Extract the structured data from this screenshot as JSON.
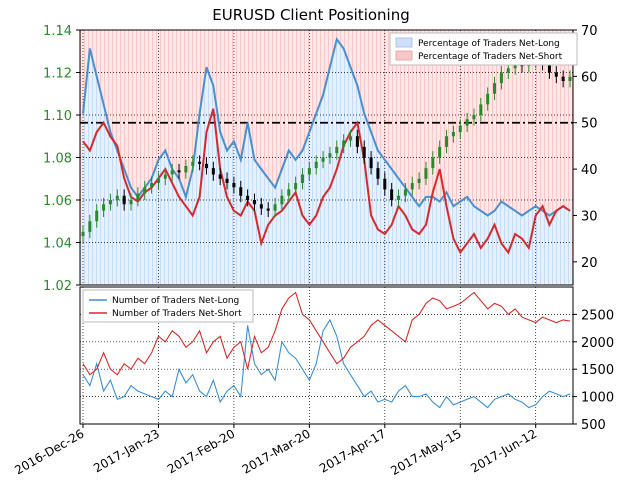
{
  "chart_data": [
    {
      "type": "candlestick",
      "title": "EURUSD Client Positioning",
      "y_left": {
        "ticks": [
          "1.02",
          "1.04",
          "1.06",
          "1.08",
          "1.10",
          "1.12",
          "1.14"
        ],
        "range": [
          1.02,
          1.14
        ],
        "color": "#2a8a2a"
      },
      "y_right": {
        "ticks": [
          "20",
          "30",
          "40",
          "50",
          "60",
          "70"
        ],
        "range": [
          15,
          70
        ]
      },
      "x_ticks": [
        "2016-Dec-26",
        "2017-Jan-23",
        "2017-Feb-20",
        "2017-Mar-20",
        "2017-Apr-17",
        "2017-May-15",
        "2017-Jun-12"
      ],
      "legend": {
        "position": "top-right",
        "entries": [
          {
            "label": "Percentage of Traders Net-Long",
            "color": "#aac8ee"
          },
          {
            "label": "Percentage of Traders Net-Short",
            "color": "#f4b0b0"
          }
        ]
      },
      "reference_line": {
        "value": 50,
        "axis": "right",
        "style": "dash-dot"
      },
      "price_close": [
        1.045,
        1.05,
        1.055,
        1.058,
        1.06,
        1.062,
        1.058,
        1.06,
        1.063,
        1.066,
        1.068,
        1.07,
        1.072,
        1.074,
        1.073,
        1.076,
        1.078,
        1.077,
        1.075,
        1.072,
        1.07,
        1.068,
        1.066,
        1.062,
        1.06,
        1.058,
        1.056,
        1.055,
        1.058,
        1.062,
        1.065,
        1.068,
        1.072,
        1.075,
        1.078,
        1.08,
        1.082,
        1.085,
        1.088,
        1.09,
        1.085,
        1.08,
        1.075,
        1.07,
        1.065,
        1.06,
        1.062,
        1.065,
        1.068,
        1.07,
        1.075,
        1.08,
        1.085,
        1.09,
        1.092,
        1.095,
        1.098,
        1.1,
        1.105,
        1.11,
        1.115,
        1.12,
        1.122,
        1.124,
        1.123,
        1.125,
        1.126,
        1.124,
        1.12,
        1.118,
        1.116,
        1.118
      ],
      "pct_long": [
        44,
        46,
        58,
        48,
        42,
        55,
        62,
        44,
        40,
        36,
        38,
        34,
        40,
        42,
        36,
        34,
        42,
        52,
        58,
        46,
        40,
        44,
        48,
        42,
        56,
        36,
        40,
        36,
        34,
        48,
        44,
        38,
        42,
        46,
        52,
        56,
        60,
        64,
        68,
        66,
        62,
        58,
        46,
        44,
        42,
        38,
        36,
        34,
        32,
        30,
        32,
        33,
        32,
        34,
        30,
        32,
        33,
        31,
        30,
        28,
        30,
        32,
        31,
        30,
        28,
        29,
        31,
        30,
        28,
        30,
        31,
        30
      ],
      "pct_short": [
        56,
        54,
        42,
        52,
        58,
        45,
        38,
        56,
        60,
        64,
        62,
        66,
        60,
        58,
        64,
        66,
        58,
        48,
        42,
        54,
        60,
        56,
        52,
        58,
        44,
        64,
        60,
        64,
        66,
        52,
        56,
        62,
        58,
        54,
        48,
        44,
        40,
        36,
        32,
        34,
        38,
        42,
        54,
        56,
        58,
        62,
        64,
        66,
        68,
        70,
        68,
        67,
        68,
        66,
        70,
        68,
        67,
        69,
        70,
        72,
        70,
        68,
        69,
        70,
        72,
        71,
        69,
        70,
        72,
        70,
        69,
        70
      ],
      "net_long_pct_line": [
        46,
        44,
        48,
        50,
        47,
        45,
        38,
        34,
        33,
        35,
        36,
        38,
        40,
        37,
        34,
        32,
        30,
        34,
        48,
        53,
        40,
        34,
        31,
        30,
        33,
        31,
        24,
        28,
        30,
        31,
        33,
        35,
        30,
        28,
        30,
        34,
        36,
        40,
        45,
        48,
        50,
        42,
        30,
        27,
        26,
        28,
        32,
        30,
        27,
        26,
        28,
        35,
        40,
        32,
        25,
        22,
        24,
        26,
        23,
        25,
        28,
        24,
        22,
        26,
        25,
        23,
        30,
        32,
        28,
        31,
        32,
        31
      ],
      "net_long_pct_line_blue": [
        52,
        66,
        60,
        54,
        48,
        44,
        40,
        36,
        34,
        36,
        38,
        42,
        44,
        40,
        38,
        34,
        40,
        52,
        62,
        58,
        48,
        44,
        46,
        42,
        50,
        42,
        40,
        38,
        36,
        40,
        44,
        42,
        44,
        48,
        52,
        56,
        62,
        68,
        66,
        62,
        58,
        52,
        48,
        44,
        42,
        40,
        38,
        36,
        34,
        32,
        34,
        34,
        33,
        35,
        32,
        33,
        34,
        32,
        31,
        30,
        31,
        33,
        32,
        31,
        30,
        31,
        32,
        31,
        30,
        31,
        32,
        31
      ]
    },
    {
      "type": "line",
      "y_ticks": [
        "500",
        "1000",
        "1500",
        "2000",
        "2500"
      ],
      "ylim": [
        500,
        3000
      ],
      "legend": {
        "position": "top-left",
        "entries": [
          {
            "label": "Number of Traders Net-Long",
            "color": "#3a8fd6"
          },
          {
            "label": "Number of Traders Net-Short",
            "color": "#d62a2a"
          }
        ]
      },
      "series": [
        {
          "name": "Number of Traders Net-Long",
          "color": "#3a8fd6",
          "values": [
            1400,
            1200,
            1600,
            1100,
            1300,
            950,
            1000,
            1200,
            1100,
            1050,
            1000,
            950,
            1100,
            1000,
            1500,
            1250,
            1400,
            1100,
            1000,
            1300,
            900,
            1100,
            1200,
            1000,
            2300,
            1600,
            1400,
            1500,
            1300,
            2000,
            1800,
            1700,
            1500,
            1300,
            1600,
            2200,
            2400,
            2100,
            1600,
            1400,
            1200,
            1000,
            1100,
            900,
            950,
            900,
            1100,
            1200,
            1000,
            1000,
            1050,
            900,
            800,
            1000,
            850,
            900,
            950,
            1000,
            900,
            800,
            950,
            1000,
            1050,
            950,
            900,
            800,
            850,
            1000,
            1100,
            1050,
            1000,
            1050
          ]
        },
        {
          "name": "Number of Traders Net-Short",
          "color": "#d62a2a",
          "values": [
            1600,
            1400,
            1500,
            1800,
            1500,
            1400,
            1600,
            1500,
            1700,
            1600,
            1800,
            2100,
            2000,
            2200,
            2100,
            1900,
            2000,
            2200,
            1800,
            2000,
            2100,
            1700,
            1900,
            2000,
            1500,
            2100,
            1800,
            1900,
            2200,
            2600,
            2800,
            2900,
            2500,
            2400,
            2200,
            2000,
            1800,
            1600,
            1700,
            1900,
            2000,
            2100,
            2300,
            2400,
            2300,
            2200,
            2100,
            2000,
            2400,
            2500,
            2700,
            2800,
            2750,
            2600,
            2650,
            2700,
            2800,
            2900,
            2750,
            2600,
            2700,
            2650,
            2500,
            2600,
            2450,
            2400,
            2350,
            2450,
            2400,
            2350,
            2400,
            2380
          ]
        }
      ]
    }
  ]
}
